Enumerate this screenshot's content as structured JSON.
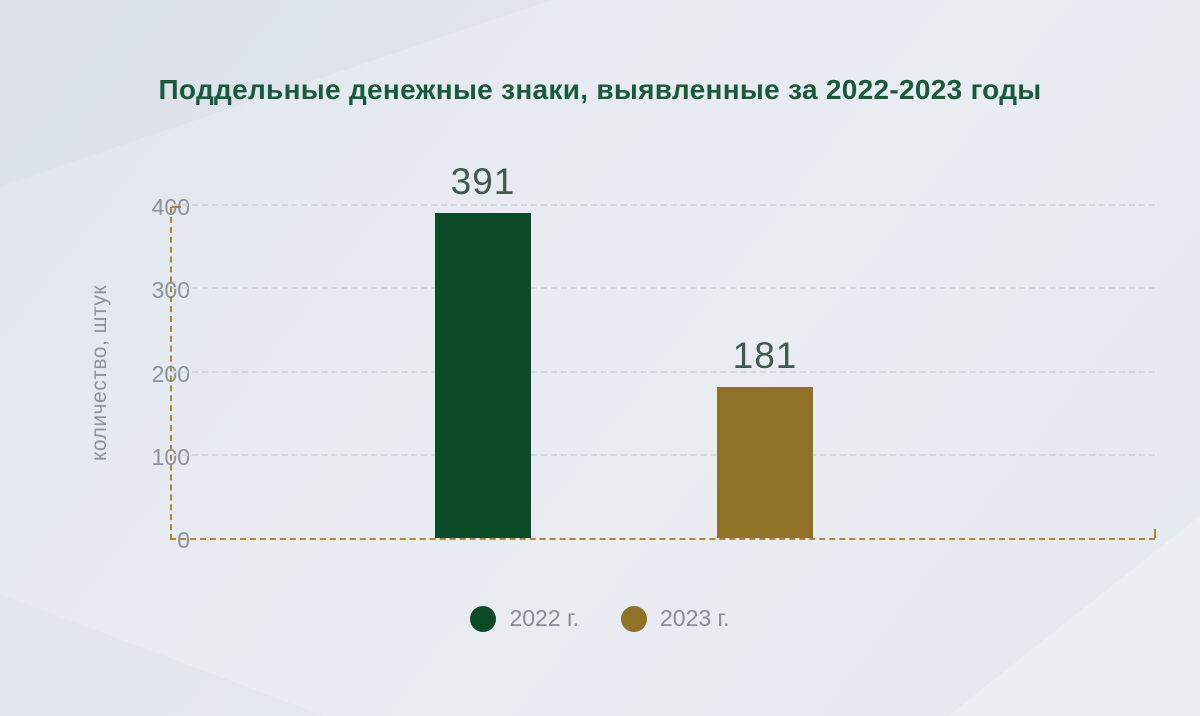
{
  "chart_data": {
    "type": "bar",
    "title": "Поддельные денежные знаки, выявленные за 2022-2023 годы",
    "categories": [
      "2022 г.",
      "2023 г."
    ],
    "values": [
      391,
      181
    ],
    "series_colors": [
      "#0b4b27",
      "#907226"
    ],
    "ylabel": "количество, штук",
    "yticks": [
      0,
      100,
      200,
      300,
      400
    ],
    "ylim": [
      0,
      400
    ],
    "grid": true,
    "grid_style": "dashed",
    "axis_color": "#a9892f",
    "tick_label_color": "#8d929c",
    "value_label_color": "#44594e",
    "title_color": "#175b3b",
    "legend_position": "bottom"
  }
}
